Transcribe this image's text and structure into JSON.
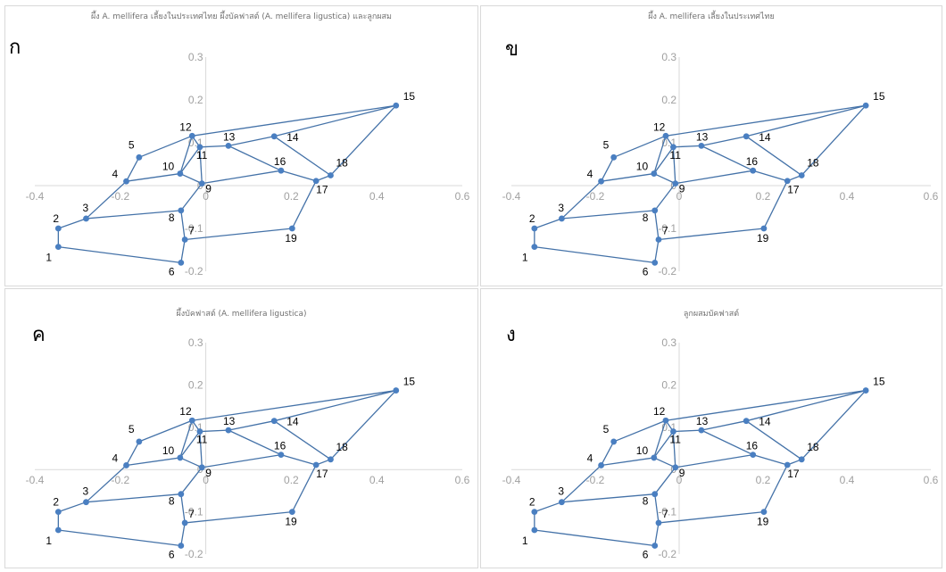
{
  "colors": {
    "series": "#4472a8",
    "point": "#4a7fc1",
    "axis": "#d9d9d9",
    "tick": "#a0a0a0"
  },
  "panels": [
    {
      "letter": "ก",
      "title": "ผึ้ง A. mellifera เลี้ยงในประเทศไทย ผึ้งบัคฟาสต์ (A. mellifera ligustica) และลูกผสม"
    },
    {
      "letter": "ข",
      "title": "ผึ้ง A. mellifera เลี้ยงในประเทศไทย"
    },
    {
      "letter": "ค",
      "title": "ผึ้งบัคฟาสต์ (A. mellifera ligustica)"
    },
    {
      "letter": "ง",
      "title": "ลูกผสมบัคฟาสต์"
    }
  ],
  "chart_data": [
    {
      "type": "scatter",
      "title": "ผึ้ง A. mellifera เลี้ยงในประเทศไทย ผึ้งบัคฟาสต์ (A. mellifera ligustica) และลูกผสม",
      "xlim": [
        -0.4,
        0.6
      ],
      "ylim": [
        -0.2,
        0.3
      ],
      "x_ticks": [
        "-0.4",
        "-0.2",
        "0",
        "0.2",
        "0.4",
        "0.6"
      ],
      "y_ticks": [
        "0.3",
        "0.2",
        "0.1",
        "0",
        "-0.1",
        "-0.2"
      ],
      "points": [
        {
          "label": "1",
          "x": -0.345,
          "y": -0.143
        },
        {
          "label": "2",
          "x": -0.345,
          "y": -0.1
        },
        {
          "label": "3",
          "x": -0.28,
          "y": -0.077
        },
        {
          "label": "4",
          "x": -0.186,
          "y": 0.01
        },
        {
          "label": "5",
          "x": -0.156,
          "y": 0.066
        },
        {
          "label": "6",
          "x": -0.058,
          "y": -0.18
        },
        {
          "label": "7",
          "x": -0.049,
          "y": -0.126
        },
        {
          "label": "8",
          "x": -0.058,
          "y": -0.058
        },
        {
          "label": "9",
          "x": -0.009,
          "y": 0.005
        },
        {
          "label": "10",
          "x": -0.06,
          "y": 0.028
        },
        {
          "label": "11",
          "x": -0.014,
          "y": 0.09
        },
        {
          "label": "12",
          "x": -0.032,
          "y": 0.116
        },
        {
          "label": "13",
          "x": 0.053,
          "y": 0.093
        },
        {
          "label": "14",
          "x": 0.16,
          "y": 0.115
        },
        {
          "label": "15",
          "x": 0.445,
          "y": 0.187
        },
        {
          "label": "16",
          "x": 0.176,
          "y": 0.035
        },
        {
          "label": "17",
          "x": 0.258,
          "y": 0.011
        },
        {
          "label": "18",
          "x": 0.292,
          "y": 0.024
        },
        {
          "label": "19",
          "x": 0.202,
          "y": -0.1
        }
      ],
      "edges": [
        [
          1,
          2
        ],
        [
          1,
          6
        ],
        [
          2,
          3
        ],
        [
          3,
          8
        ],
        [
          3,
          4
        ],
        [
          4,
          5
        ],
        [
          5,
          12
        ],
        [
          4,
          10
        ],
        [
          10,
          12
        ],
        [
          10,
          11
        ],
        [
          11,
          12
        ],
        [
          12,
          15
        ],
        [
          11,
          13
        ],
        [
          13,
          14
        ],
        [
          14,
          15
        ],
        [
          13,
          16
        ],
        [
          9,
          16
        ],
        [
          9,
          10
        ],
        [
          9,
          11
        ],
        [
          8,
          9
        ],
        [
          8,
          7
        ],
        [
          7,
          6
        ],
        [
          7,
          19
        ],
        [
          16,
          17
        ],
        [
          17,
          18
        ],
        [
          14,
          18
        ],
        [
          15,
          18
        ],
        [
          17,
          19
        ]
      ]
    },
    {
      "type": "scatter",
      "title": "ผึ้ง A. mellifera เลี้ยงในประเทศไทย",
      "xlim": [
        -0.4,
        0.6
      ],
      "ylim": [
        -0.2,
        0.3
      ],
      "x_ticks": [
        "-0.4",
        "-0.2",
        "0",
        "0.2",
        "0.4",
        "0.6"
      ],
      "y_ticks": [
        "0.3",
        "0.2",
        "0.1",
        "0",
        "-0.1",
        "-0.2"
      ],
      "points": [
        {
          "label": "1",
          "x": -0.345,
          "y": -0.143
        },
        {
          "label": "2",
          "x": -0.345,
          "y": -0.1
        },
        {
          "label": "3",
          "x": -0.28,
          "y": -0.077
        },
        {
          "label": "4",
          "x": -0.186,
          "y": 0.01
        },
        {
          "label": "5",
          "x": -0.156,
          "y": 0.066
        },
        {
          "label": "6",
          "x": -0.058,
          "y": -0.18
        },
        {
          "label": "7",
          "x": -0.049,
          "y": -0.126
        },
        {
          "label": "8",
          "x": -0.058,
          "y": -0.058
        },
        {
          "label": "9",
          "x": -0.009,
          "y": 0.005
        },
        {
          "label": "10",
          "x": -0.06,
          "y": 0.028
        },
        {
          "label": "11",
          "x": -0.014,
          "y": 0.09
        },
        {
          "label": "12",
          "x": -0.032,
          "y": 0.116
        },
        {
          "label": "13",
          "x": 0.053,
          "y": 0.093
        },
        {
          "label": "14",
          "x": 0.16,
          "y": 0.115
        },
        {
          "label": "15",
          "x": 0.445,
          "y": 0.187
        },
        {
          "label": "16",
          "x": 0.176,
          "y": 0.035
        },
        {
          "label": "17",
          "x": 0.258,
          "y": 0.011
        },
        {
          "label": "18",
          "x": 0.292,
          "y": 0.024
        },
        {
          "label": "19",
          "x": 0.202,
          "y": -0.1
        }
      ],
      "edges": [
        [
          1,
          2
        ],
        [
          1,
          6
        ],
        [
          2,
          3
        ],
        [
          3,
          8
        ],
        [
          3,
          4
        ],
        [
          4,
          5
        ],
        [
          5,
          12
        ],
        [
          4,
          10
        ],
        [
          10,
          12
        ],
        [
          10,
          11
        ],
        [
          11,
          12
        ],
        [
          12,
          15
        ],
        [
          11,
          13
        ],
        [
          13,
          14
        ],
        [
          14,
          15
        ],
        [
          13,
          16
        ],
        [
          9,
          16
        ],
        [
          9,
          10
        ],
        [
          9,
          11
        ],
        [
          8,
          9
        ],
        [
          8,
          7
        ],
        [
          7,
          6
        ],
        [
          7,
          19
        ],
        [
          16,
          17
        ],
        [
          17,
          18
        ],
        [
          14,
          18
        ],
        [
          15,
          18
        ],
        [
          17,
          19
        ]
      ]
    },
    {
      "type": "scatter",
      "title": "ผึ้งบัคฟาสต์ (A. mellifera ligustica)",
      "xlim": [
        -0.4,
        0.6
      ],
      "ylim": [
        -0.2,
        0.3
      ],
      "x_ticks": [
        "-0.4",
        "-0.2",
        "0",
        "0.2",
        "0.4",
        "0.6"
      ],
      "y_ticks": [
        "0.3",
        "0.2",
        "0.1",
        "0",
        "-0.1",
        "-0.2"
      ],
      "points": [
        {
          "label": "1",
          "x": -0.345,
          "y": -0.143
        },
        {
          "label": "2",
          "x": -0.345,
          "y": -0.1
        },
        {
          "label": "3",
          "x": -0.28,
          "y": -0.077
        },
        {
          "label": "4",
          "x": -0.186,
          "y": 0.01
        },
        {
          "label": "5",
          "x": -0.156,
          "y": 0.066
        },
        {
          "label": "6",
          "x": -0.058,
          "y": -0.18
        },
        {
          "label": "7",
          "x": -0.049,
          "y": -0.126
        },
        {
          "label": "8",
          "x": -0.058,
          "y": -0.058
        },
        {
          "label": "9",
          "x": -0.009,
          "y": 0.005
        },
        {
          "label": "10",
          "x": -0.06,
          "y": 0.028
        },
        {
          "label": "11",
          "x": -0.014,
          "y": 0.09
        },
        {
          "label": "12",
          "x": -0.032,
          "y": 0.116
        },
        {
          "label": "13",
          "x": 0.053,
          "y": 0.093
        },
        {
          "label": "14",
          "x": 0.16,
          "y": 0.115
        },
        {
          "label": "15",
          "x": 0.445,
          "y": 0.187
        },
        {
          "label": "16",
          "x": 0.176,
          "y": 0.035
        },
        {
          "label": "17",
          "x": 0.258,
          "y": 0.011
        },
        {
          "label": "18",
          "x": 0.292,
          "y": 0.024
        },
        {
          "label": "19",
          "x": 0.202,
          "y": -0.1
        }
      ],
      "edges": [
        [
          1,
          2
        ],
        [
          1,
          6
        ],
        [
          2,
          3
        ],
        [
          3,
          8
        ],
        [
          3,
          4
        ],
        [
          4,
          5
        ],
        [
          5,
          12
        ],
        [
          4,
          10
        ],
        [
          10,
          12
        ],
        [
          10,
          11
        ],
        [
          11,
          12
        ],
        [
          12,
          15
        ],
        [
          11,
          13
        ],
        [
          13,
          14
        ],
        [
          14,
          15
        ],
        [
          13,
          16
        ],
        [
          9,
          16
        ],
        [
          9,
          10
        ],
        [
          9,
          11
        ],
        [
          8,
          9
        ],
        [
          8,
          7
        ],
        [
          7,
          6
        ],
        [
          7,
          19
        ],
        [
          16,
          17
        ],
        [
          17,
          18
        ],
        [
          14,
          18
        ],
        [
          15,
          18
        ],
        [
          17,
          19
        ]
      ]
    },
    {
      "type": "scatter",
      "title": "ลูกผสมบัคฟาสต์",
      "xlim": [
        -0.4,
        0.6
      ],
      "ylim": [
        -0.2,
        0.3
      ],
      "x_ticks": [
        "-0.4",
        "-0.2",
        "0",
        "0.2",
        "0.4",
        "0.6"
      ],
      "y_ticks": [
        "0.3",
        "0.2",
        "0.1",
        "0",
        "-0.1",
        "-0.2"
      ],
      "points": [
        {
          "label": "1",
          "x": -0.345,
          "y": -0.143
        },
        {
          "label": "2",
          "x": -0.345,
          "y": -0.1
        },
        {
          "label": "3",
          "x": -0.28,
          "y": -0.077
        },
        {
          "label": "4",
          "x": -0.186,
          "y": 0.01
        },
        {
          "label": "5",
          "x": -0.156,
          "y": 0.066
        },
        {
          "label": "6",
          "x": -0.058,
          "y": -0.18
        },
        {
          "label": "7",
          "x": -0.049,
          "y": -0.126
        },
        {
          "label": "8",
          "x": -0.058,
          "y": -0.058
        },
        {
          "label": "9",
          "x": -0.009,
          "y": 0.005
        },
        {
          "label": "10",
          "x": -0.06,
          "y": 0.028
        },
        {
          "label": "11",
          "x": -0.014,
          "y": 0.09
        },
        {
          "label": "12",
          "x": -0.032,
          "y": 0.116
        },
        {
          "label": "13",
          "x": 0.053,
          "y": 0.093
        },
        {
          "label": "14",
          "x": 0.16,
          "y": 0.115
        },
        {
          "label": "15",
          "x": 0.445,
          "y": 0.187
        },
        {
          "label": "16",
          "x": 0.176,
          "y": 0.035
        },
        {
          "label": "17",
          "x": 0.258,
          "y": 0.011
        },
        {
          "label": "18",
          "x": 0.292,
          "y": 0.024
        },
        {
          "label": "19",
          "x": 0.202,
          "y": -0.1
        }
      ],
      "edges": [
        [
          1,
          2
        ],
        [
          1,
          6
        ],
        [
          2,
          3
        ],
        [
          3,
          8
        ],
        [
          3,
          4
        ],
        [
          4,
          5
        ],
        [
          5,
          12
        ],
        [
          4,
          10
        ],
        [
          10,
          12
        ],
        [
          10,
          11
        ],
        [
          11,
          12
        ],
        [
          12,
          15
        ],
        [
          11,
          13
        ],
        [
          13,
          14
        ],
        [
          14,
          15
        ],
        [
          13,
          16
        ],
        [
          9,
          16
        ],
        [
          9,
          10
        ],
        [
          9,
          11
        ],
        [
          8,
          9
        ],
        [
          8,
          7
        ],
        [
          7,
          6
        ],
        [
          7,
          19
        ],
        [
          16,
          17
        ],
        [
          17,
          18
        ],
        [
          14,
          18
        ],
        [
          15,
          18
        ],
        [
          17,
          19
        ]
      ]
    }
  ]
}
